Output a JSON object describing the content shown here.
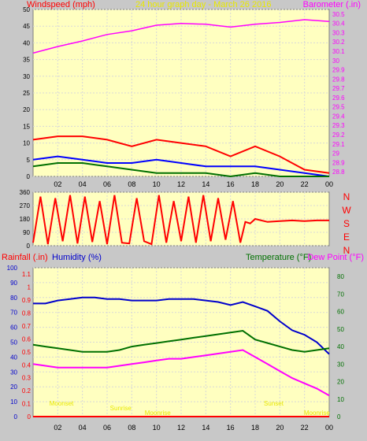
{
  "colors": {
    "plot_bg": "#ffffc0",
    "outer_bg": "#c8c8c8",
    "grid": "#d8d8d8",
    "title": "#e8e800",
    "wind": "#ff0000",
    "wind_avg": "#0000ff",
    "wind_low": "#007000",
    "barometer": "#ff00ff",
    "direction": "#ff0000",
    "humidity": "#0000cc",
    "temperature": "#007000",
    "dew_point": "#ff00ff",
    "rain": "#ff0000",
    "sun_label": "#e8e800"
  },
  "header": {
    "title": "24 hour graph day - March 26 2016",
    "windspeed_label": "Windspeed (mph)",
    "barometer_label": "Barometer (.in)"
  },
  "panel3_header": {
    "rainfall_label": "Rainfall (.in)",
    "humidity_label": "Humidity (%)",
    "temperature_label": "Temperature (°F)",
    "dew_point_label": "Dew Point (°F)"
  },
  "x_ticks": [
    "02",
    "04",
    "06",
    "08",
    "10",
    "12",
    "14",
    "16",
    "18",
    "20",
    "22",
    "00"
  ],
  "wind_axis": {
    "ticks": [
      "50",
      "45",
      "40",
      "35",
      "30",
      "25",
      "20",
      "15",
      "10",
      "5",
      "0"
    ],
    "ylim": [
      0,
      50
    ]
  },
  "baro_axis": {
    "ticks": [
      "30.5",
      "30.4",
      "30.3",
      "30.2",
      "30.1",
      "30",
      "29.9",
      "29.8",
      "29.7",
      "29.6",
      "29.5",
      "29.4",
      "29.3",
      "29.2",
      "29.1",
      "29",
      "28.9",
      "28.8"
    ],
    "ylim": [
      28.75,
      30.55
    ]
  },
  "dir_axis": {
    "ticks": [
      "360",
      "270",
      "180",
      "90",
      "0"
    ],
    "compass": [
      "N",
      "W",
      "S",
      "E",
      "N"
    ],
    "ylim": [
      0,
      360
    ]
  },
  "humidity_axis": {
    "ticks": [
      "100",
      "90",
      "80",
      "70",
      "60",
      "50",
      "40",
      "30",
      "20",
      "10",
      "0"
    ],
    "ylim": [
      0,
      100
    ]
  },
  "rain_axis": {
    "ticks": [
      "1.1",
      "1",
      "0.9",
      "0.8",
      "0.7",
      "0.6",
      "0.5",
      "0.4",
      "0.3",
      "0.2",
      "0.1",
      "0"
    ],
    "ylim": [
      0,
      1.15
    ]
  },
  "temp_axis": {
    "ticks": [
      "80",
      "70",
      "60",
      "50",
      "40",
      "30",
      "20",
      "10",
      "0"
    ],
    "ylim": [
      0,
      85
    ]
  },
  "sun_labels": [
    {
      "text": "Moonset",
      "hour": 2.3,
      "row": 0
    },
    {
      "text": "Sunrise",
      "hour": 7.1,
      "row": 1
    },
    {
      "text": "Moonrise",
      "hour": 10.1,
      "row": 2
    },
    {
      "text": "Sunset",
      "hour": 19.5,
      "row": 0
    },
    {
      "text": "Moonrise",
      "hour": 23.0,
      "row": 2
    }
  ],
  "chart_data": [
    {
      "type": "line",
      "title": "24 hour graph day - March 26 2016",
      "xlabel": "",
      "ylabel": "Windspeed (mph)",
      "ylabel_right": "Barometer (.in)",
      "x": [
        0.0,
        2.0,
        4.0,
        6.0,
        8.0,
        10.0,
        12.0,
        14.0,
        16.0,
        18.0,
        20.0,
        22.0,
        24.0
      ],
      "ylim": [
        0,
        50
      ],
      "ylim_right": [
        28.75,
        30.55
      ],
      "series": [
        {
          "values": [
            11,
            12,
            12,
            11,
            9,
            11,
            10,
            9,
            6,
            9,
            6,
            2,
            1
          ]
        },
        {
          "values": [
            5,
            6,
            5,
            4,
            4,
            5,
            4,
            3,
            3,
            3,
            2,
            1,
            0
          ]
        },
        {
          "values": [
            3,
            4,
            4,
            3,
            2,
            1,
            1,
            1,
            0,
            1,
            0,
            0,
            0
          ]
        },
        {
          "axis": "right",
          "values": [
            30.08,
            30.15,
            30.21,
            30.28,
            30.32,
            30.38,
            30.4,
            30.39,
            30.36,
            30.39,
            30.41,
            30.44,
            30.42
          ]
        }
      ]
    },
    {
      "type": "line",
      "ylabel": "",
      "x": [
        0.0,
        0.6,
        1.2,
        1.8,
        2.4,
        3.0,
        3.6,
        4.2,
        4.8,
        5.4,
        6.0,
        6.6,
        7.2,
        7.8,
        8.4,
        9.0,
        9.6,
        10.2,
        10.8,
        11.4,
        12.0,
        12.6,
        13.2,
        13.8,
        14.4,
        15.0,
        15.6,
        16.2,
        16.8,
        17.2,
        17.6,
        18.0,
        19.0,
        20.0,
        21.0,
        22.0,
        23.0,
        24.0
      ],
      "ylim": [
        0,
        360
      ],
      "series": [
        {
          "values": [
            20,
            330,
            10,
            320,
            30,
            340,
            15,
            330,
            25,
            300,
            10,
            340,
            20,
            15,
            320,
            30,
            10,
            340,
            20,
            300,
            30,
            330,
            20,
            340,
            30,
            320,
            40,
            300,
            20,
            160,
            150,
            180,
            160,
            165,
            170,
            165,
            170,
            170
          ]
        }
      ]
    },
    {
      "type": "line",
      "xlabel": "",
      "ylabel": "Humidity (%)",
      "ylabel_right": "Temperature (°F)",
      "ylabel_left_outer": "Rainfall (.in)",
      "ylabel_right_outer": "Dew Point (°F)",
      "x": [
        0.0,
        1.0,
        2.0,
        3.0,
        4.0,
        5.0,
        6.0,
        7.0,
        8.0,
        9.0,
        10.0,
        11.0,
        12.0,
        13.0,
        14.0,
        15.0,
        16.0,
        17.0,
        18.0,
        19.0,
        20.0,
        21.0,
        22.0,
        23.0,
        24.0
      ],
      "ylim": [
        0,
        100
      ],
      "ylim_right": [
        0,
        85
      ],
      "series": [
        {
          "axis": "left",
          "values": [
            76,
            76,
            78,
            79,
            80,
            80,
            79,
            79,
            78,
            78,
            78,
            79,
            79,
            79,
            78,
            77,
            75,
            77,
            74,
            71,
            64,
            58,
            55,
            50,
            42
          ]
        },
        {
          "axis": "right",
          "values": [
            41,
            40,
            39,
            38,
            37,
            37,
            37,
            38,
            40,
            41,
            42,
            43,
            44,
            45,
            46,
            47,
            48,
            49,
            44,
            42,
            40,
            38,
            37,
            38,
            39
          ]
        },
        {
          "axis": "right",
          "values": [
            30,
            29,
            28,
            28,
            28,
            28,
            28,
            29,
            30,
            31,
            32,
            33,
            33,
            34,
            35,
            36,
            37,
            38,
            34,
            30,
            26,
            22,
            19,
            16,
            12
          ]
        },
        {
          "axis": "left_outer",
          "values": [
            0,
            0,
            0,
            0,
            0,
            0,
            0,
            0,
            0,
            0,
            0,
            0,
            0,
            0,
            0,
            0,
            0,
            0,
            0,
            0,
            0,
            0,
            0,
            0,
            0
          ]
        }
      ]
    }
  ]
}
